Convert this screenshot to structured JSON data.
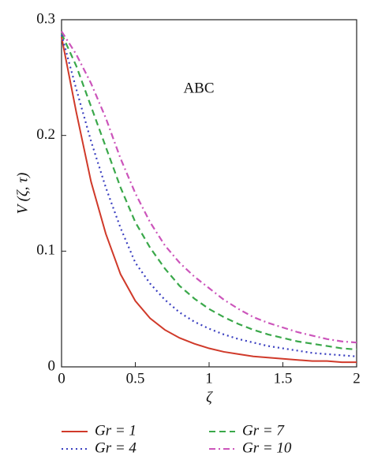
{
  "chart_data": {
    "type": "line",
    "annotation": "ABC",
    "x_label": "ζ",
    "y_label": "V (ζ, τ)",
    "x": [
      0,
      0.1,
      0.2,
      0.3,
      0.4,
      0.5,
      0.6,
      0.7,
      0.8,
      0.9,
      1,
      1.1,
      1.2,
      1.3,
      1.4,
      1.5,
      1.6,
      1.7,
      1.8,
      1.9,
      2
    ],
    "series": [
      {
        "name": "Gr = 1",
        "color": "#d03a2a",
        "style": "solid",
        "values": [
          0.285,
          0.22,
          0.16,
          0.115,
          0.08,
          0.057,
          0.042,
          0.032,
          0.025,
          0.02,
          0.016,
          0.013,
          0.011,
          0.009,
          0.008,
          0.007,
          0.006,
          0.005,
          0.005,
          0.004,
          0.004
        ]
      },
      {
        "name": "Gr = 7",
        "color": "#3aa84a",
        "style": "dashed",
        "values": [
          0.288,
          0.26,
          0.225,
          0.19,
          0.155,
          0.125,
          0.103,
          0.085,
          0.07,
          0.059,
          0.05,
          0.043,
          0.037,
          0.032,
          0.028,
          0.025,
          0.022,
          0.02,
          0.018,
          0.016,
          0.015
        ]
      },
      {
        "name": "Gr = 4",
        "color": "#3a3fc0",
        "style": "dotted",
        "values": [
          0.287,
          0.24,
          0.195,
          0.155,
          0.12,
          0.09,
          0.072,
          0.058,
          0.047,
          0.039,
          0.033,
          0.028,
          0.024,
          0.021,
          0.018,
          0.016,
          0.014,
          0.012,
          0.011,
          0.01,
          0.009
        ]
      },
      {
        "name": "Gr = 10",
        "color": "#cc55bb",
        "style": "dashdot",
        "values": [
          0.29,
          0.27,
          0.245,
          0.215,
          0.18,
          0.15,
          0.125,
          0.105,
          0.09,
          0.078,
          0.068,
          0.058,
          0.05,
          0.043,
          0.038,
          0.034,
          0.03,
          0.027,
          0.024,
          0.022,
          0.021
        ]
      }
    ],
    "xlim": [
      0,
      2
    ],
    "xticks": [
      0,
      0.5,
      1,
      1.5,
      2
    ],
    "ylim": [
      0,
      0.3
    ],
    "yticks": [
      0,
      0.1,
      0.2,
      0.3
    ],
    "grid": false
  }
}
